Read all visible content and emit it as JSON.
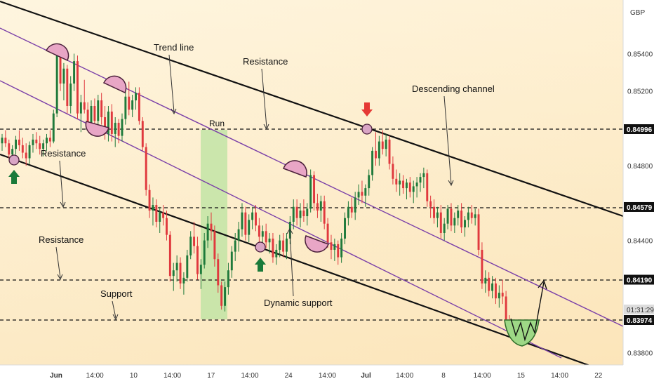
{
  "chart_data": {
    "type": "candlestick",
    "currency": "GBP",
    "price_axis": {
      "ticks": [
        "0.85400",
        "0.85200",
        "0.84800",
        "0.84400",
        "0.83800"
      ],
      "ylim": [
        0.8375,
        0.8562
      ]
    },
    "time_axis": {
      "ticks": [
        "Jun",
        "14:00",
        "10",
        "14:00",
        "17",
        "14:00",
        "24",
        "14:00",
        "Jul",
        "14:00",
        "8",
        "14:00",
        "15",
        "14:00",
        "22"
      ]
    },
    "levels": [
      {
        "value": 0.84996,
        "label": "0.84996"
      },
      {
        "value": 0.84579,
        "label": "0.84579"
      },
      {
        "value": 0.8419,
        "label": "0.84190"
      },
      {
        "value": 0.83974,
        "label": "0.83974"
      }
    ],
    "countdown": {
      "label": "01:31:29",
      "value": 0.84045
    },
    "annotations": {
      "trend_line": "Trend line",
      "resistance_top": "Resistance",
      "descending_channel": "Descending channel",
      "run": "Run",
      "resistance_left": "Resistance",
      "resistance_lower": "Resistance",
      "support": "Support",
      "dynamic_support": "Dynamic support"
    },
    "candles": [
      [
        0.8492,
        0.8497,
        0.8488,
        0.8495
      ],
      [
        0.8495,
        0.8499,
        0.849,
        0.8492
      ],
      [
        0.8492,
        0.8494,
        0.8484,
        0.8486
      ],
      [
        0.8486,
        0.8491,
        0.8481,
        0.8489
      ],
      [
        0.8489,
        0.8496,
        0.8486,
        0.8494
      ],
      [
        0.8494,
        0.8499,
        0.8488,
        0.8491
      ],
      [
        0.8491,
        0.8495,
        0.8484,
        0.8487
      ],
      [
        0.8487,
        0.8492,
        0.848,
        0.8484
      ],
      [
        0.8484,
        0.8493,
        0.8481,
        0.8491
      ],
      [
        0.8491,
        0.8497,
        0.8487,
        0.8494
      ],
      [
        0.8494,
        0.8498,
        0.8489,
        0.8492
      ],
      [
        0.8492,
        0.8496,
        0.8486,
        0.8489
      ],
      [
        0.8489,
        0.8494,
        0.8485,
        0.8492
      ],
      [
        0.8492,
        0.8497,
        0.8488,
        0.8495
      ],
      [
        0.8495,
        0.8499,
        0.849,
        0.8493
      ],
      [
        0.8493,
        0.851,
        0.8492,
        0.8508
      ],
      [
        0.8508,
        0.8544,
        0.8506,
        0.854
      ],
      [
        0.854,
        0.8542,
        0.852,
        0.8524
      ],
      [
        0.8524,
        0.8535,
        0.8515,
        0.8532
      ],
      [
        0.8532,
        0.8534,
        0.8508,
        0.8512
      ],
      [
        0.8512,
        0.8528,
        0.8508,
        0.8524
      ],
      [
        0.8524,
        0.854,
        0.852,
        0.8536
      ],
      [
        0.8536,
        0.8539,
        0.8505,
        0.8508
      ],
      [
        0.8508,
        0.8518,
        0.8498,
        0.8514
      ],
      [
        0.8514,
        0.8526,
        0.8508,
        0.851
      ],
      [
        0.851,
        0.8514,
        0.8499,
        0.8503
      ],
      [
        0.8503,
        0.8515,
        0.8498,
        0.8512
      ],
      [
        0.8512,
        0.8516,
        0.85,
        0.8504
      ],
      [
        0.8504,
        0.8518,
        0.85,
        0.8515
      ],
      [
        0.8515,
        0.8519,
        0.8502,
        0.8506
      ],
      [
        0.8506,
        0.8512,
        0.8494,
        0.8497
      ],
      [
        0.8497,
        0.8512,
        0.8493,
        0.8509
      ],
      [
        0.8509,
        0.8513,
        0.8493,
        0.8497
      ],
      [
        0.8497,
        0.8506,
        0.849,
        0.8503
      ],
      [
        0.8503,
        0.8505,
        0.8492,
        0.8496
      ],
      [
        0.8496,
        0.8508,
        0.8493,
        0.8505
      ],
      [
        0.8505,
        0.852,
        0.8502,
        0.8517
      ],
      [
        0.8517,
        0.8525,
        0.8507,
        0.851
      ],
      [
        0.851,
        0.8518,
        0.8506,
        0.8515
      ],
      [
        0.8515,
        0.8522,
        0.851,
        0.8519
      ],
      [
        0.8519,
        0.8522,
        0.8502,
        0.8504
      ],
      [
        0.8504,
        0.8506,
        0.8488,
        0.849
      ],
      [
        0.849,
        0.8492,
        0.8464,
        0.8467
      ],
      [
        0.8467,
        0.847,
        0.8452,
        0.8456
      ],
      [
        0.8456,
        0.8463,
        0.8448,
        0.8459
      ],
      [
        0.8459,
        0.8462,
        0.8447,
        0.845
      ],
      [
        0.845,
        0.8458,
        0.8444,
        0.8455
      ],
      [
        0.8455,
        0.8459,
        0.8448,
        0.8452
      ],
      [
        0.8452,
        0.8456,
        0.844,
        0.8443
      ],
      [
        0.8443,
        0.8445,
        0.8418,
        0.8421
      ],
      [
        0.8421,
        0.8428,
        0.8413,
        0.8424
      ],
      [
        0.8424,
        0.8432,
        0.8418,
        0.8428
      ],
      [
        0.8428,
        0.8431,
        0.8414,
        0.8417
      ],
      [
        0.8417,
        0.8423,
        0.8411,
        0.842
      ],
      [
        0.842,
        0.8435,
        0.8418,
        0.8432
      ],
      [
        0.8432,
        0.8445,
        0.843,
        0.8442
      ],
      [
        0.8442,
        0.845,
        0.8433,
        0.8437
      ],
      [
        0.8437,
        0.8442,
        0.8419,
        0.8422
      ],
      [
        0.8422,
        0.843,
        0.8414,
        0.8427
      ],
      [
        0.8427,
        0.8444,
        0.8425,
        0.844
      ],
      [
        0.844,
        0.8453,
        0.8436,
        0.8449
      ],
      [
        0.8449,
        0.8455,
        0.844,
        0.8445
      ],
      [
        0.8445,
        0.8448,
        0.8426,
        0.843
      ],
      [
        0.843,
        0.8433,
        0.8412,
        0.8416
      ],
      [
        0.8416,
        0.8418,
        0.8403,
        0.8405
      ],
      [
        0.8405,
        0.8418,
        0.8402,
        0.8415
      ],
      [
        0.8415,
        0.8428,
        0.8411,
        0.8424
      ],
      [
        0.8424,
        0.8437,
        0.842,
        0.8434
      ],
      [
        0.8434,
        0.8444,
        0.8429,
        0.844
      ],
      [
        0.844,
        0.845,
        0.8434,
        0.8446
      ],
      [
        0.8446,
        0.846,
        0.8442,
        0.8455
      ],
      [
        0.8455,
        0.8458,
        0.844,
        0.8443
      ],
      [
        0.8443,
        0.8454,
        0.8439,
        0.8451
      ],
      [
        0.8451,
        0.8458,
        0.8446,
        0.8455
      ],
      [
        0.8455,
        0.8459,
        0.8445,
        0.8448
      ],
      [
        0.8448,
        0.8452,
        0.8438,
        0.8442
      ],
      [
        0.8442,
        0.8448,
        0.8436,
        0.8445
      ],
      [
        0.8445,
        0.8449,
        0.8436,
        0.8439
      ],
      [
        0.8439,
        0.8444,
        0.8433,
        0.8441
      ],
      [
        0.8441,
        0.8444,
        0.8428,
        0.8431
      ],
      [
        0.8431,
        0.8438,
        0.8427,
        0.8435
      ],
      [
        0.8435,
        0.8443,
        0.8431,
        0.844
      ],
      [
        0.844,
        0.8444,
        0.8431,
        0.8434
      ],
      [
        0.8434,
        0.8444,
        0.843,
        0.8441
      ],
      [
        0.8441,
        0.8453,
        0.8438,
        0.845
      ],
      [
        0.845,
        0.8462,
        0.8446,
        0.8458
      ],
      [
        0.8458,
        0.8462,
        0.8448,
        0.8452
      ],
      [
        0.8452,
        0.846,
        0.8447,
        0.8456
      ],
      [
        0.8456,
        0.8462,
        0.845,
        0.8453
      ],
      [
        0.8453,
        0.846,
        0.8448,
        0.8457
      ],
      [
        0.8457,
        0.8478,
        0.8455,
        0.8475
      ],
      [
        0.8475,
        0.8477,
        0.8456,
        0.846
      ],
      [
        0.846,
        0.8465,
        0.8452,
        0.8456
      ],
      [
        0.8456,
        0.8464,
        0.845,
        0.8461
      ],
      [
        0.8461,
        0.8464,
        0.8446,
        0.8449
      ],
      [
        0.8449,
        0.8452,
        0.8436,
        0.8439
      ],
      [
        0.8439,
        0.8443,
        0.843,
        0.8435
      ],
      [
        0.8435,
        0.8441,
        0.8429,
        0.8438
      ],
      [
        0.8438,
        0.844,
        0.8427,
        0.8431
      ],
      [
        0.8431,
        0.8444,
        0.8428,
        0.8441
      ],
      [
        0.8441,
        0.8455,
        0.8438,
        0.8452
      ],
      [
        0.8452,
        0.8461,
        0.8448,
        0.8458
      ],
      [
        0.8458,
        0.8463,
        0.8452,
        0.8455
      ],
      [
        0.8455,
        0.8466,
        0.8451,
        0.8463
      ],
      [
        0.8463,
        0.847,
        0.8459,
        0.8466
      ],
      [
        0.8466,
        0.8472,
        0.846,
        0.8464
      ],
      [
        0.8464,
        0.847,
        0.8458,
        0.8468
      ],
      [
        0.8468,
        0.8478,
        0.8464,
        0.8475
      ],
      [
        0.8475,
        0.849,
        0.8472,
        0.8488
      ],
      [
        0.8488,
        0.8498,
        0.848,
        0.8484
      ],
      [
        0.8484,
        0.8496,
        0.848,
        0.8493
      ],
      [
        0.8493,
        0.8499,
        0.8486,
        0.8489
      ],
      [
        0.8489,
        0.8497,
        0.8485,
        0.8494
      ],
      [
        0.8494,
        0.8496,
        0.8478,
        0.8481
      ],
      [
        0.8481,
        0.8485,
        0.847,
        0.8473
      ],
      [
        0.8473,
        0.8478,
        0.8466,
        0.847
      ],
      [
        0.847,
        0.8476,
        0.8464,
        0.8472
      ],
      [
        0.8472,
        0.8475,
        0.8465,
        0.8468
      ],
      [
        0.8468,
        0.8473,
        0.8462,
        0.8471
      ],
      [
        0.8471,
        0.8474,
        0.8463,
        0.8466
      ],
      [
        0.8466,
        0.8472,
        0.846,
        0.8469
      ],
      [
        0.8469,
        0.8474,
        0.8463,
        0.8471
      ],
      [
        0.8471,
        0.8476,
        0.8466,
        0.8474
      ],
      [
        0.8474,
        0.8479,
        0.8468,
        0.8476
      ],
      [
        0.8476,
        0.8478,
        0.8458,
        0.8461
      ],
      [
        0.8461,
        0.8464,
        0.8452,
        0.8458
      ],
      [
        0.8458,
        0.8462,
        0.8449,
        0.8452
      ],
      [
        0.8452,
        0.8458,
        0.8447,
        0.8455
      ],
      [
        0.8455,
        0.8459,
        0.8441,
        0.8444
      ],
      [
        0.8444,
        0.8452,
        0.844,
        0.8449
      ],
      [
        0.8449,
        0.8459,
        0.8446,
        0.8457
      ],
      [
        0.8457,
        0.846,
        0.8445,
        0.8448
      ],
      [
        0.8448,
        0.8455,
        0.8444,
        0.8452
      ],
      [
        0.8452,
        0.8459,
        0.8448,
        0.8456
      ],
      [
        0.8456,
        0.846,
        0.8444,
        0.8447
      ],
      [
        0.8447,
        0.8453,
        0.8442,
        0.8451
      ],
      [
        0.8451,
        0.8458,
        0.8447,
        0.8455
      ],
      [
        0.8455,
        0.8459,
        0.8449,
        0.8452
      ],
      [
        0.8452,
        0.8457,
        0.8448,
        0.8454
      ],
      [
        0.8454,
        0.8457,
        0.8432,
        0.8435
      ],
      [
        0.8435,
        0.8439,
        0.8414,
        0.8417
      ],
      [
        0.8417,
        0.8424,
        0.8412,
        0.842
      ],
      [
        0.842,
        0.8423,
        0.841,
        0.8413
      ],
      [
        0.8413,
        0.8421,
        0.8409,
        0.8417
      ],
      [
        0.8417,
        0.842,
        0.8406,
        0.8409
      ],
      [
        0.8409,
        0.8416,
        0.8404,
        0.8412
      ],
      [
        0.8412,
        0.8419,
        0.8406,
        0.841
      ],
      [
        0.841,
        0.8413,
        0.8394,
        0.8397
      ],
      [
        0.8397,
        0.84,
        0.8393,
        0.8395
      ]
    ]
  }
}
